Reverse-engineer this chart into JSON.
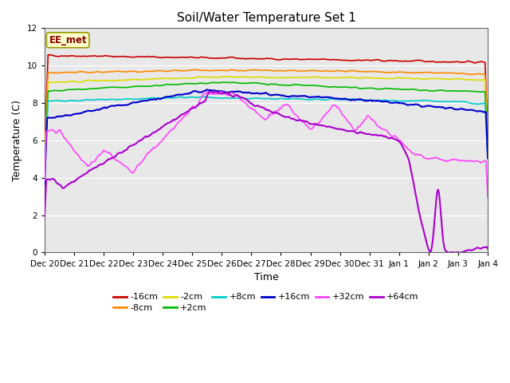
{
  "title": "Soil/Water Temperature Set 1",
  "xlabel": "Time",
  "ylabel": "Temperature (C)",
  "ylim": [
    0,
    12
  ],
  "yticks": [
    0,
    2,
    4,
    6,
    8,
    10,
    12
  ],
  "fig_bg_color": "#ffffff",
  "plot_bg_color": "#e8e8e8",
  "grid_color": "#ffffff",
  "annotation_text": "EE_met",
  "annotation_bg": "#ffffcc",
  "annotation_border": "#999900",
  "annotation_text_color": "#880000",
  "series": [
    {
      "label": "-16cm",
      "color": "#cc0000",
      "lw": 1.2
    },
    {
      "label": "-8cm",
      "color": "#ff8800",
      "lw": 1.2
    },
    {
      "label": "-2cm",
      "color": "#dddd00",
      "lw": 1.2
    },
    {
      "label": "+2cm",
      "color": "#00bb00",
      "lw": 1.2
    },
    {
      "label": "+8cm",
      "color": "#00cccc",
      "lw": 1.2
    },
    {
      "label": "+16cm",
      "color": "#0000cc",
      "lw": 1.5
    },
    {
      "label": "+32cm",
      "color": "#ff44ff",
      "lw": 1.2
    },
    {
      "label": "+64cm",
      "color": "#aa00cc",
      "lw": 1.5
    }
  ],
  "xtick_labels": [
    "Dec 20",
    "Dec 21",
    "Dec 22",
    "Dec 23",
    "Dec 24",
    "Dec 25",
    "Dec 26",
    "Dec 27",
    "Dec 28",
    "Dec 29",
    "Dec 30",
    "Dec 31",
    "Jan 1",
    "Jan 2",
    "Jan 3",
    "Jan 4"
  ],
  "n_points": 500,
  "title_fontsize": 11,
  "tick_fontsize": 7.5,
  "axis_label_fontsize": 9,
  "legend_fontsize": 8
}
